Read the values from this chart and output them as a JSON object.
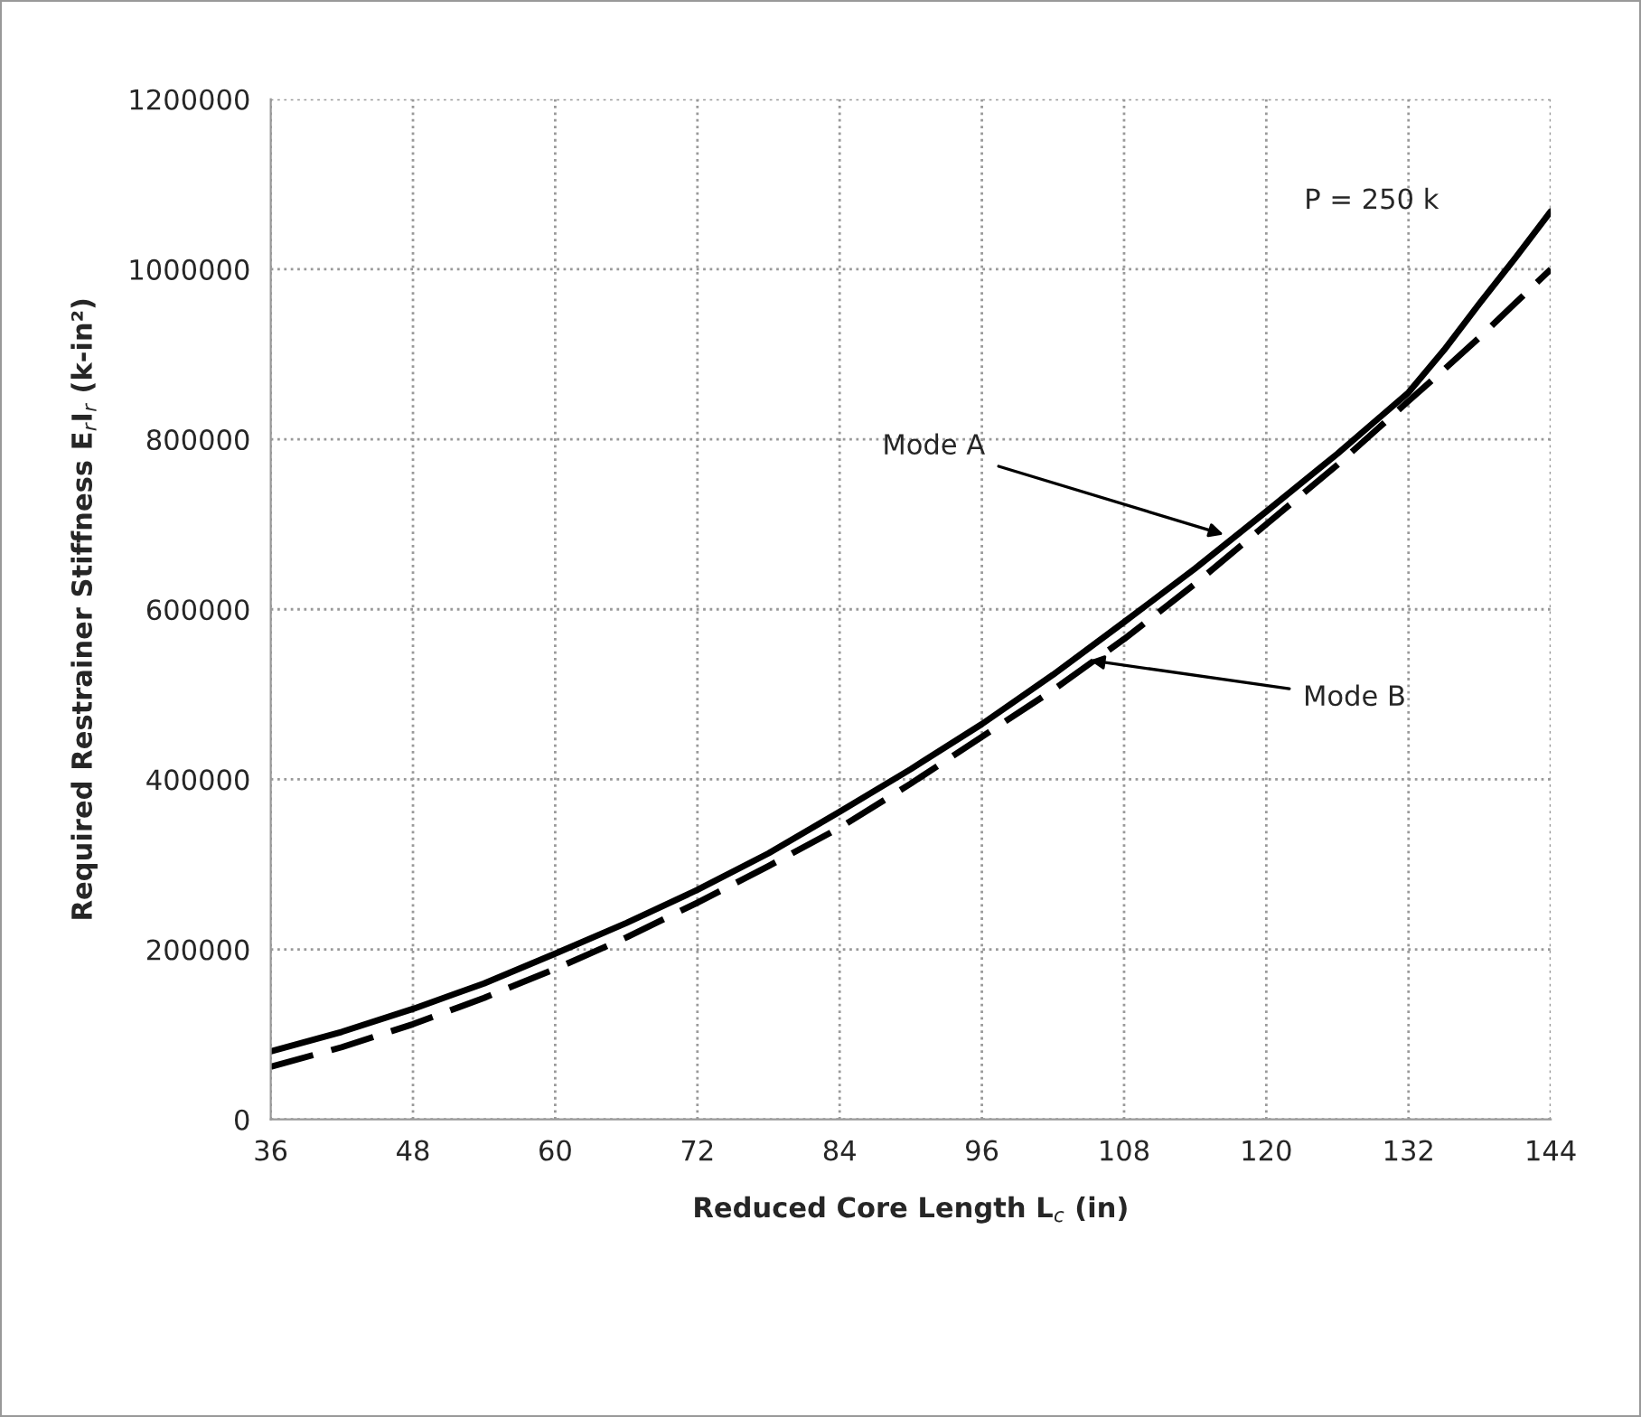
{
  "chart_data": {
    "type": "line",
    "xlabel": "Reduced Core Length L$_{c}$ (in)",
    "ylabel": "Required Restrainer Stiffness E$_{r}$I$_{r}$ (k-in²)",
    "x": [
      36,
      42,
      48,
      54,
      60,
      66,
      72,
      78,
      84,
      90,
      96,
      102,
      108,
      114,
      120,
      126,
      132,
      135,
      138,
      141,
      144
    ],
    "series": [
      {
        "color": "#000000",
        "line_style": "solid",
        "values": [
          80000,
          103000,
          130000,
          160000,
          195000,
          231000,
          270000,
          313000,
          362000,
          412000,
          465000,
          523000,
          585000,
          648000,
          715000,
          783000,
          855000,
          905000,
          960000,
          1013000,
          1068000
        ]
      },
      {
        "color": "#000000",
        "line_style": "dashed",
        "values": [
          62000,
          85000,
          112000,
          143000,
          177000,
          214000,
          255000,
          298000,
          343000,
          395000,
          450000,
          505000,
          565000,
          630000,
          700000,
          770000,
          845000,
          882000,
          920000,
          960000,
          1000000
        ]
      }
    ],
    "xlim": [
      36,
      144
    ],
    "xticks": [
      36,
      48,
      60,
      72,
      84,
      96,
      108,
      120,
      132,
      144
    ],
    "ylim": [
      0,
      1200000
    ],
    "yticks": [
      0,
      200000,
      400000,
      600000,
      800000,
      1000000,
      1200000
    ],
    "grid": true,
    "marker": "none",
    "annotations": [
      {
        "text": "Mode A",
        "x": 116.4,
        "y": 688000
      },
      {
        "text": "Mode B",
        "x": 105.1,
        "y": 540000
      },
      "P = 250 k"
    ]
  }
}
